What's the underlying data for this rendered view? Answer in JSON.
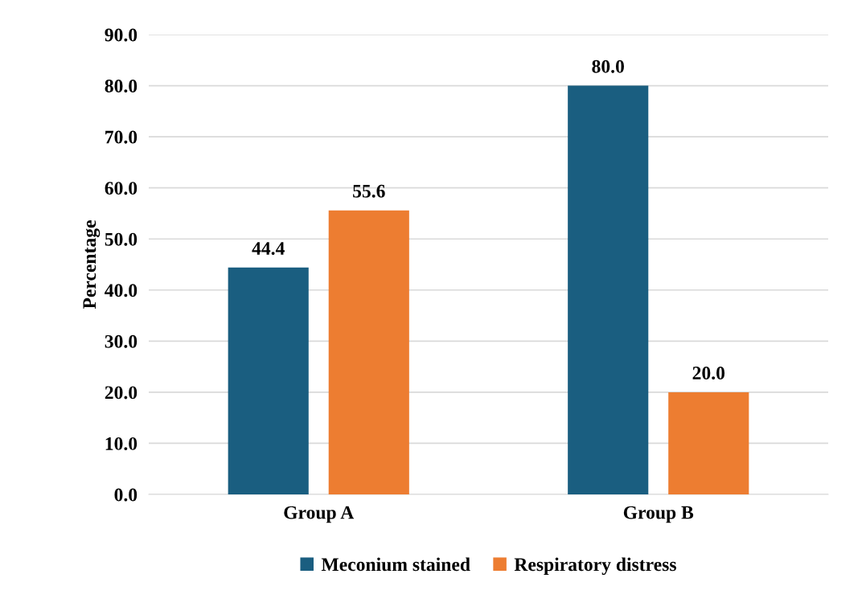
{
  "chart_data": {
    "type": "bar",
    "ylabel": "Percentage",
    "categories": [
      "Group A",
      "Group B"
    ],
    "series": [
      {
        "name": "Meconium stained",
        "color": "#1a5e80",
        "values": [
          44.4,
          80.0
        ],
        "value_labels": [
          "44.4",
          "80.0"
        ]
      },
      {
        "name": "Respiratory distress",
        "color": "#ed7d31",
        "values": [
          55.6,
          20.0
        ],
        "value_labels": [
          "55.6",
          "20.0"
        ]
      }
    ],
    "ylim": [
      0,
      90
    ],
    "yticks": [
      {
        "value": 0,
        "label": "0.0"
      },
      {
        "value": 10,
        "label": "10.0"
      },
      {
        "value": 20,
        "label": "20.0"
      },
      {
        "value": 30,
        "label": "30.0"
      },
      {
        "value": 40,
        "label": "40.0"
      },
      {
        "value": 50,
        "label": "50.0"
      },
      {
        "value": 60,
        "label": "60.0"
      },
      {
        "value": 70,
        "label": "70.0"
      },
      {
        "value": 80,
        "label": "80.0"
      },
      {
        "value": 90,
        "label": "90.0"
      }
    ],
    "grid": "y",
    "legend": "bottom"
  }
}
